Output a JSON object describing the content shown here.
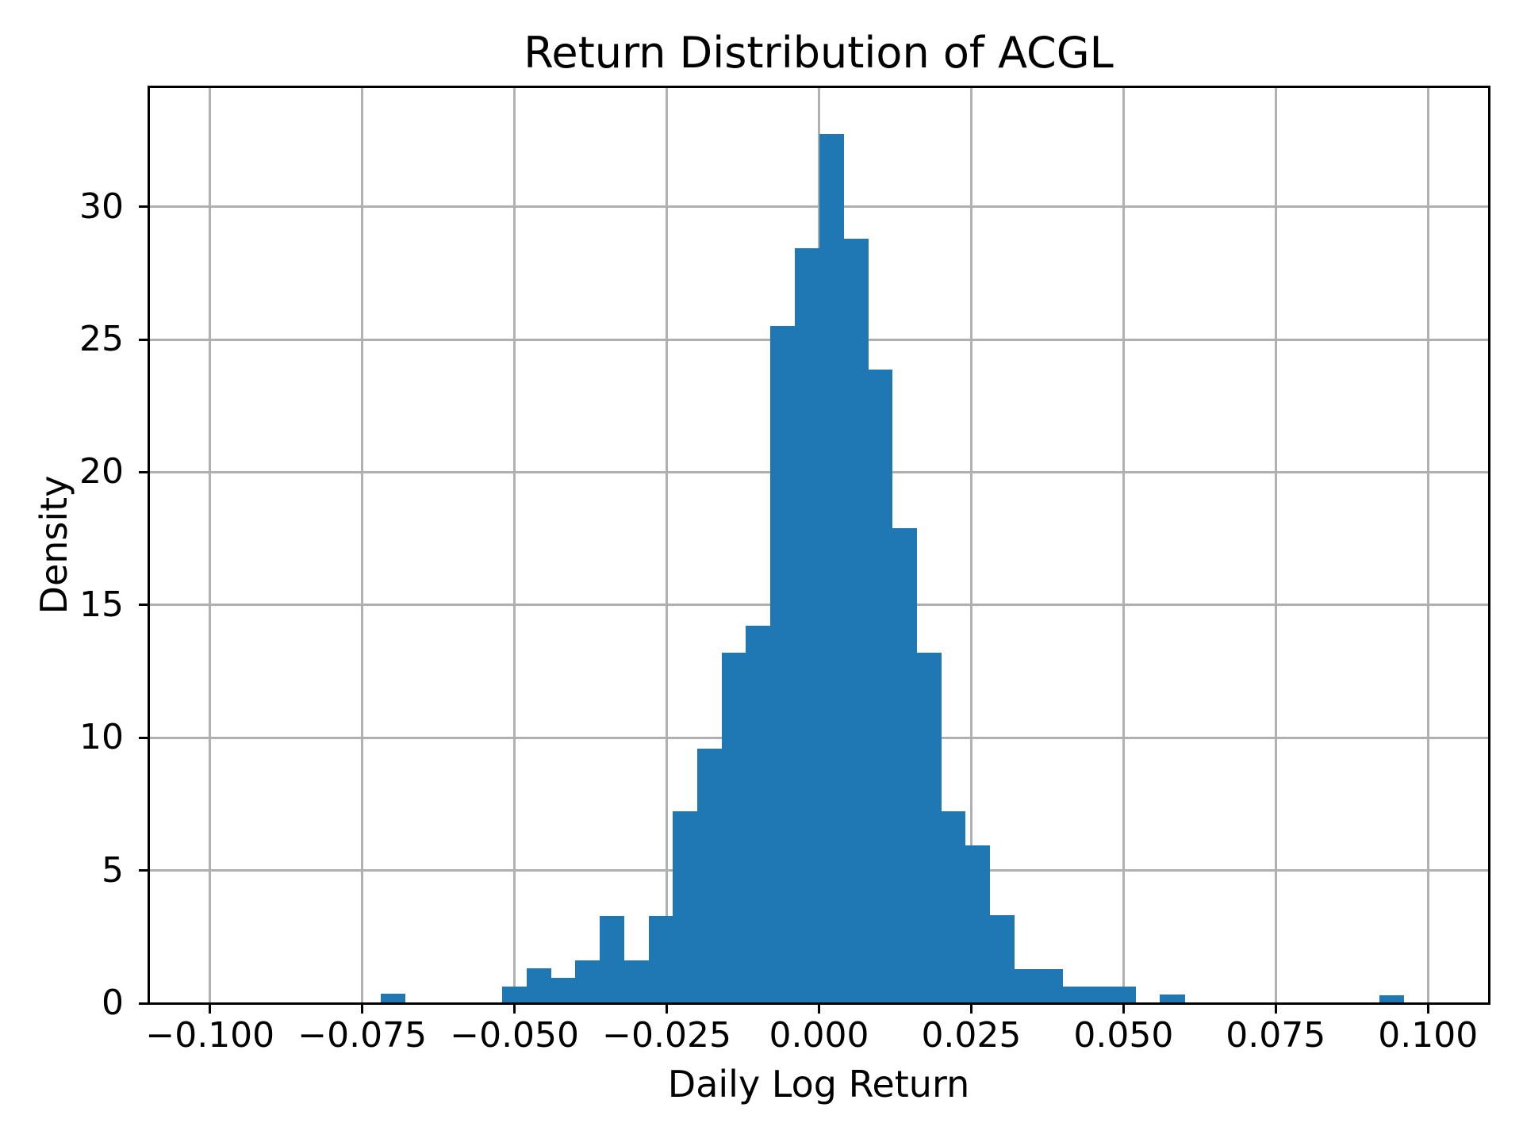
{
  "chart_data": {
    "type": "bar",
    "subtype": "histogram-density",
    "title": "Return Distribution of ACGL",
    "xlabel": "Daily Log Return",
    "ylabel": "Density",
    "grid": true,
    "legend": null,
    "bar_color": "#1f77b4",
    "grid_color": "#b0b0b0",
    "spine_color": "#000000",
    "text_color": "#000000",
    "xlim": [
      -0.11,
      0.11
    ],
    "ylim": [
      0,
      34.5
    ],
    "bin_width": 0.004,
    "bars": [
      {
        "x0": -0.072,
        "density": 0.35
      },
      {
        "x0": -0.052,
        "density": 0.62
      },
      {
        "x0": -0.048,
        "density": 1.31
      },
      {
        "x0": -0.044,
        "density": 0.95
      },
      {
        "x0": -0.04,
        "density": 1.61
      },
      {
        "x0": -0.036,
        "density": 3.3
      },
      {
        "x0": -0.032,
        "density": 1.61
      },
      {
        "x0": -0.028,
        "density": 3.3
      },
      {
        "x0": -0.024,
        "density": 7.23
      },
      {
        "x0": -0.02,
        "density": 9.58
      },
      {
        "x0": -0.016,
        "density": 13.2
      },
      {
        "x0": -0.012,
        "density": 14.22
      },
      {
        "x0": -0.008,
        "density": 25.5
      },
      {
        "x0": -0.004,
        "density": 28.44
      },
      {
        "x0": 0.0,
        "density": 32.73
      },
      {
        "x0": 0.004,
        "density": 28.79
      },
      {
        "x0": 0.008,
        "density": 23.86
      },
      {
        "x0": 0.012,
        "density": 17.89
      },
      {
        "x0": 0.016,
        "density": 13.2
      },
      {
        "x0": 0.02,
        "density": 7.23
      },
      {
        "x0": 0.024,
        "density": 5.95
      },
      {
        "x0": 0.028,
        "density": 3.31
      },
      {
        "x0": 0.032,
        "density": 1.28
      },
      {
        "x0": 0.036,
        "density": 1.28
      },
      {
        "x0": 0.04,
        "density": 0.64
      },
      {
        "x0": 0.044,
        "density": 0.64
      },
      {
        "x0": 0.048,
        "density": 0.64
      },
      {
        "x0": 0.056,
        "density": 0.33
      },
      {
        "x0": 0.092,
        "density": 0.31
      }
    ],
    "xticks": [
      {
        "value": -0.1,
        "label": "−0.100"
      },
      {
        "value": -0.075,
        "label": "−0.075"
      },
      {
        "value": -0.05,
        "label": "−0.050"
      },
      {
        "value": -0.025,
        "label": "−0.025"
      },
      {
        "value": 0.0,
        "label": "0.000"
      },
      {
        "value": 0.025,
        "label": "0.025"
      },
      {
        "value": 0.05,
        "label": "0.050"
      },
      {
        "value": 0.075,
        "label": "0.075"
      },
      {
        "value": 0.1,
        "label": "0.100"
      }
    ],
    "yticks": [
      {
        "value": 0,
        "label": "0"
      },
      {
        "value": 5,
        "label": "5"
      },
      {
        "value": 10,
        "label": "10"
      },
      {
        "value": 15,
        "label": "15"
      },
      {
        "value": 20,
        "label": "20"
      },
      {
        "value": 25,
        "label": "25"
      },
      {
        "value": 30,
        "label": "30"
      }
    ]
  }
}
